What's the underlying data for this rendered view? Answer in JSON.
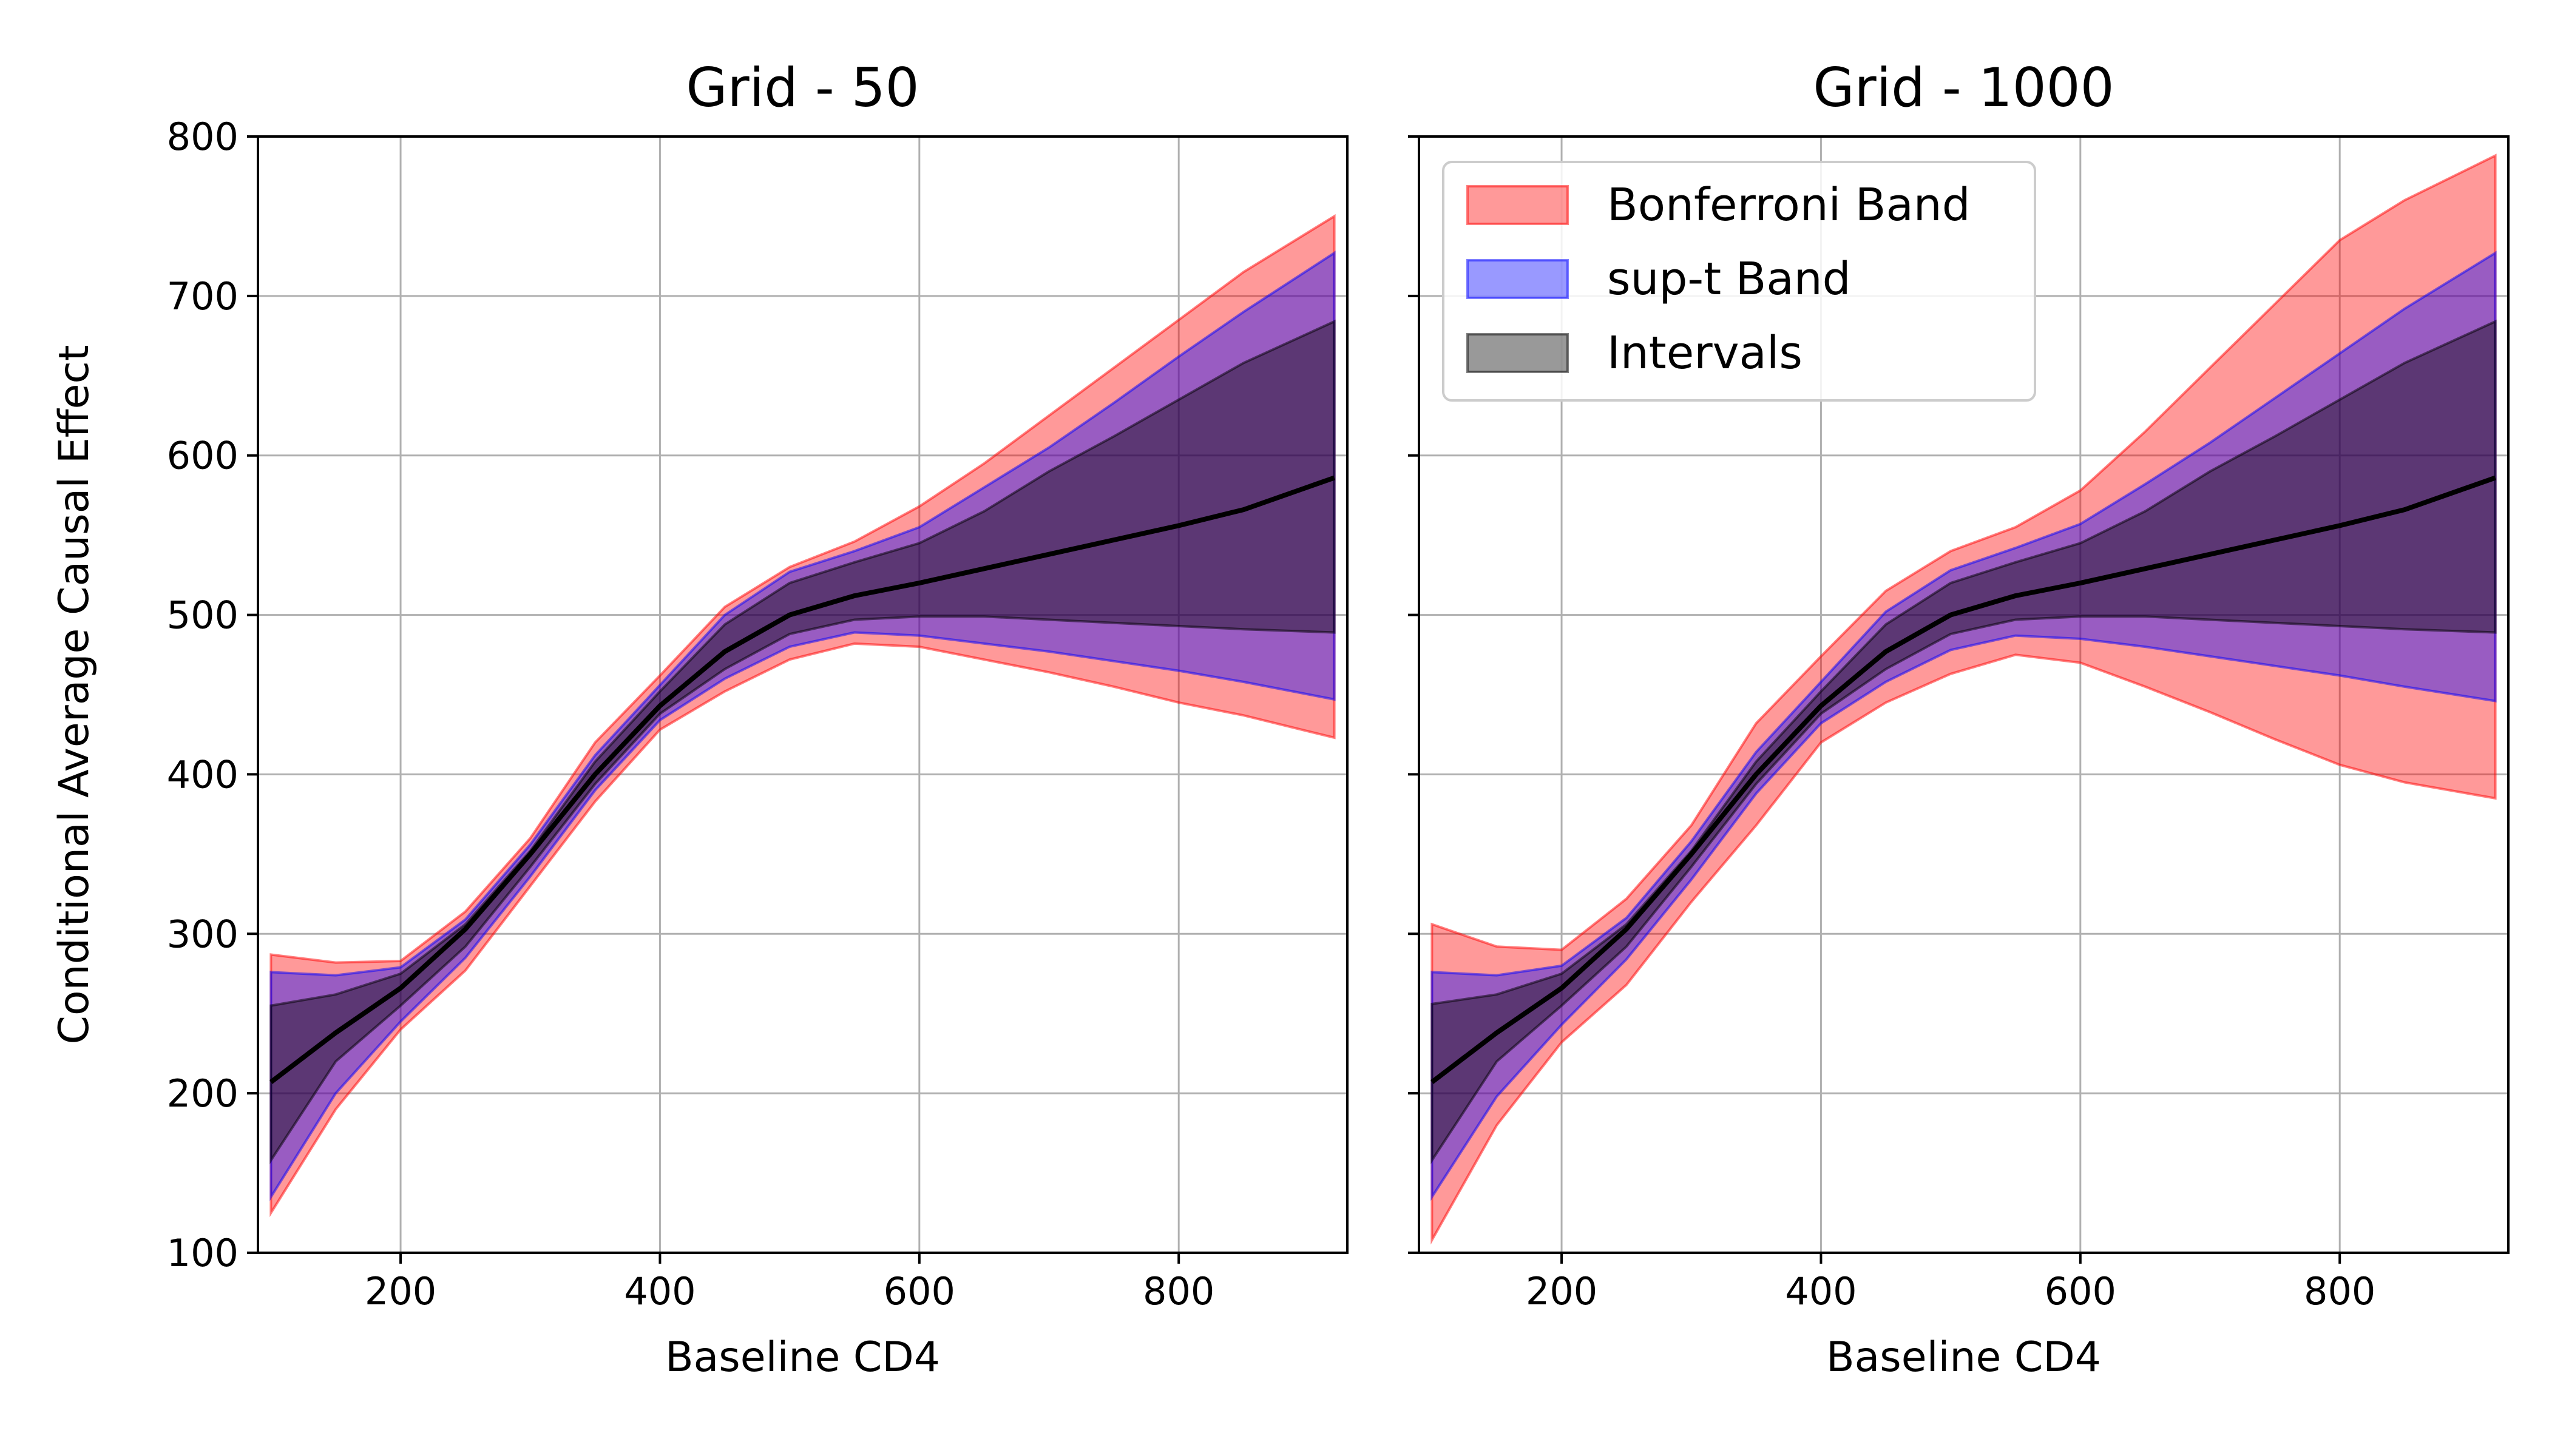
{
  "chart_data": [
    {
      "type": "area",
      "title": "Grid - 50",
      "xlabel": "Baseline CD4",
      "ylabel": "Conditional Average Causal Effect",
      "xlim": [
        90,
        930
      ],
      "ylim": [
        100,
        800
      ],
      "xticks": [
        200,
        400,
        600,
        800
      ],
      "yticks": [
        100,
        200,
        300,
        400,
        500,
        600,
        700,
        800
      ],
      "grid": true,
      "x": [
        100,
        150,
        200,
        250,
        300,
        350,
        400,
        450,
        500,
        550,
        600,
        650,
        700,
        750,
        800,
        850,
        920
      ],
      "estimate": [
        207,
        238,
        266,
        303,
        350,
        400,
        443,
        477,
        500,
        512,
        520,
        529,
        538,
        547,
        556,
        566,
        586
      ],
      "series": [
        {
          "name": "Bonferroni Band",
          "color": "#ff0000",
          "fill_opacity": 0.4,
          "upper": [
            287,
            282,
            283,
            314,
            360,
            420,
            462,
            505,
            530,
            546,
            568,
            595,
            625,
            655,
            685,
            715,
            750
          ],
          "lower": [
            125,
            190,
            240,
            277,
            330,
            383,
            428,
            452,
            472,
            482,
            480,
            472,
            464,
            455,
            445,
            437,
            423
          ]
        },
        {
          "name": "sup-t Band",
          "color": "#0000ff",
          "fill_opacity": 0.4,
          "upper": [
            276,
            274,
            279,
            309,
            356,
            412,
            456,
            500,
            527,
            540,
            555,
            580,
            605,
            633,
            662,
            690,
            727
          ],
          "lower": [
            135,
            200,
            245,
            285,
            336,
            390,
            434,
            460,
            480,
            489,
            487,
            482,
            477,
            471,
            465,
            458,
            447
          ]
        },
        {
          "name": "Intervals",
          "color": "#000000",
          "fill_opacity": 0.4,
          "upper": [
            255,
            262,
            275,
            306,
            352,
            408,
            452,
            494,
            520,
            533,
            545,
            565,
            590,
            612,
            635,
            658,
            684
          ],
          "lower": [
            158,
            220,
            255,
            292,
            342,
            394,
            438,
            466,
            488,
            497,
            499,
            499,
            497,
            495,
            493,
            491,
            489
          ]
        }
      ]
    },
    {
      "type": "area",
      "title": "Grid - 1000",
      "xlabel": "Baseline CD4",
      "ylabel": "",
      "xlim": [
        90,
        930
      ],
      "ylim": [
        100,
        800
      ],
      "xticks": [
        200,
        400,
        600,
        800
      ],
      "yticks": [
        100,
        200,
        300,
        400,
        500,
        600,
        700,
        800
      ],
      "grid": true,
      "legend": "top-left",
      "x": [
        100,
        150,
        200,
        250,
        300,
        350,
        400,
        450,
        500,
        550,
        600,
        650,
        700,
        750,
        800,
        850,
        920
      ],
      "estimate": [
        207,
        238,
        266,
        303,
        350,
        400,
        443,
        477,
        500,
        512,
        520,
        529,
        538,
        547,
        556,
        566,
        586
      ],
      "series": [
        {
          "name": "Bonferroni Band",
          "color": "#ff0000",
          "fill_opacity": 0.4,
          "upper": [
            306,
            292,
            290,
            322,
            368,
            432,
            474,
            515,
            540,
            555,
            578,
            615,
            655,
            695,
            735,
            760,
            788
          ],
          "lower": [
            108,
            180,
            232,
            268,
            320,
            368,
            420,
            445,
            463,
            475,
            470,
            455,
            439,
            422,
            406,
            395,
            385
          ]
        },
        {
          "name": "sup-t Band",
          "color": "#0000ff",
          "fill_opacity": 0.4,
          "upper": [
            276,
            274,
            280,
            310,
            358,
            414,
            458,
            502,
            528,
            542,
            557,
            582,
            608,
            636,
            664,
            692,
            727
          ],
          "lower": [
            135,
            198,
            243,
            284,
            334,
            388,
            432,
            458,
            478,
            487,
            485,
            480,
            474,
            468,
            462,
            455,
            446
          ]
        },
        {
          "name": "Intervals",
          "color": "#000000",
          "fill_opacity": 0.4,
          "upper": [
            256,
            262,
            275,
            306,
            352,
            408,
            452,
            494,
            520,
            533,
            545,
            565,
            590,
            612,
            635,
            658,
            684
          ],
          "lower": [
            158,
            220,
            255,
            292,
            342,
            394,
            438,
            466,
            488,
            497,
            499,
            499,
            497,
            495,
            493,
            491,
            489
          ]
        }
      ]
    }
  ]
}
